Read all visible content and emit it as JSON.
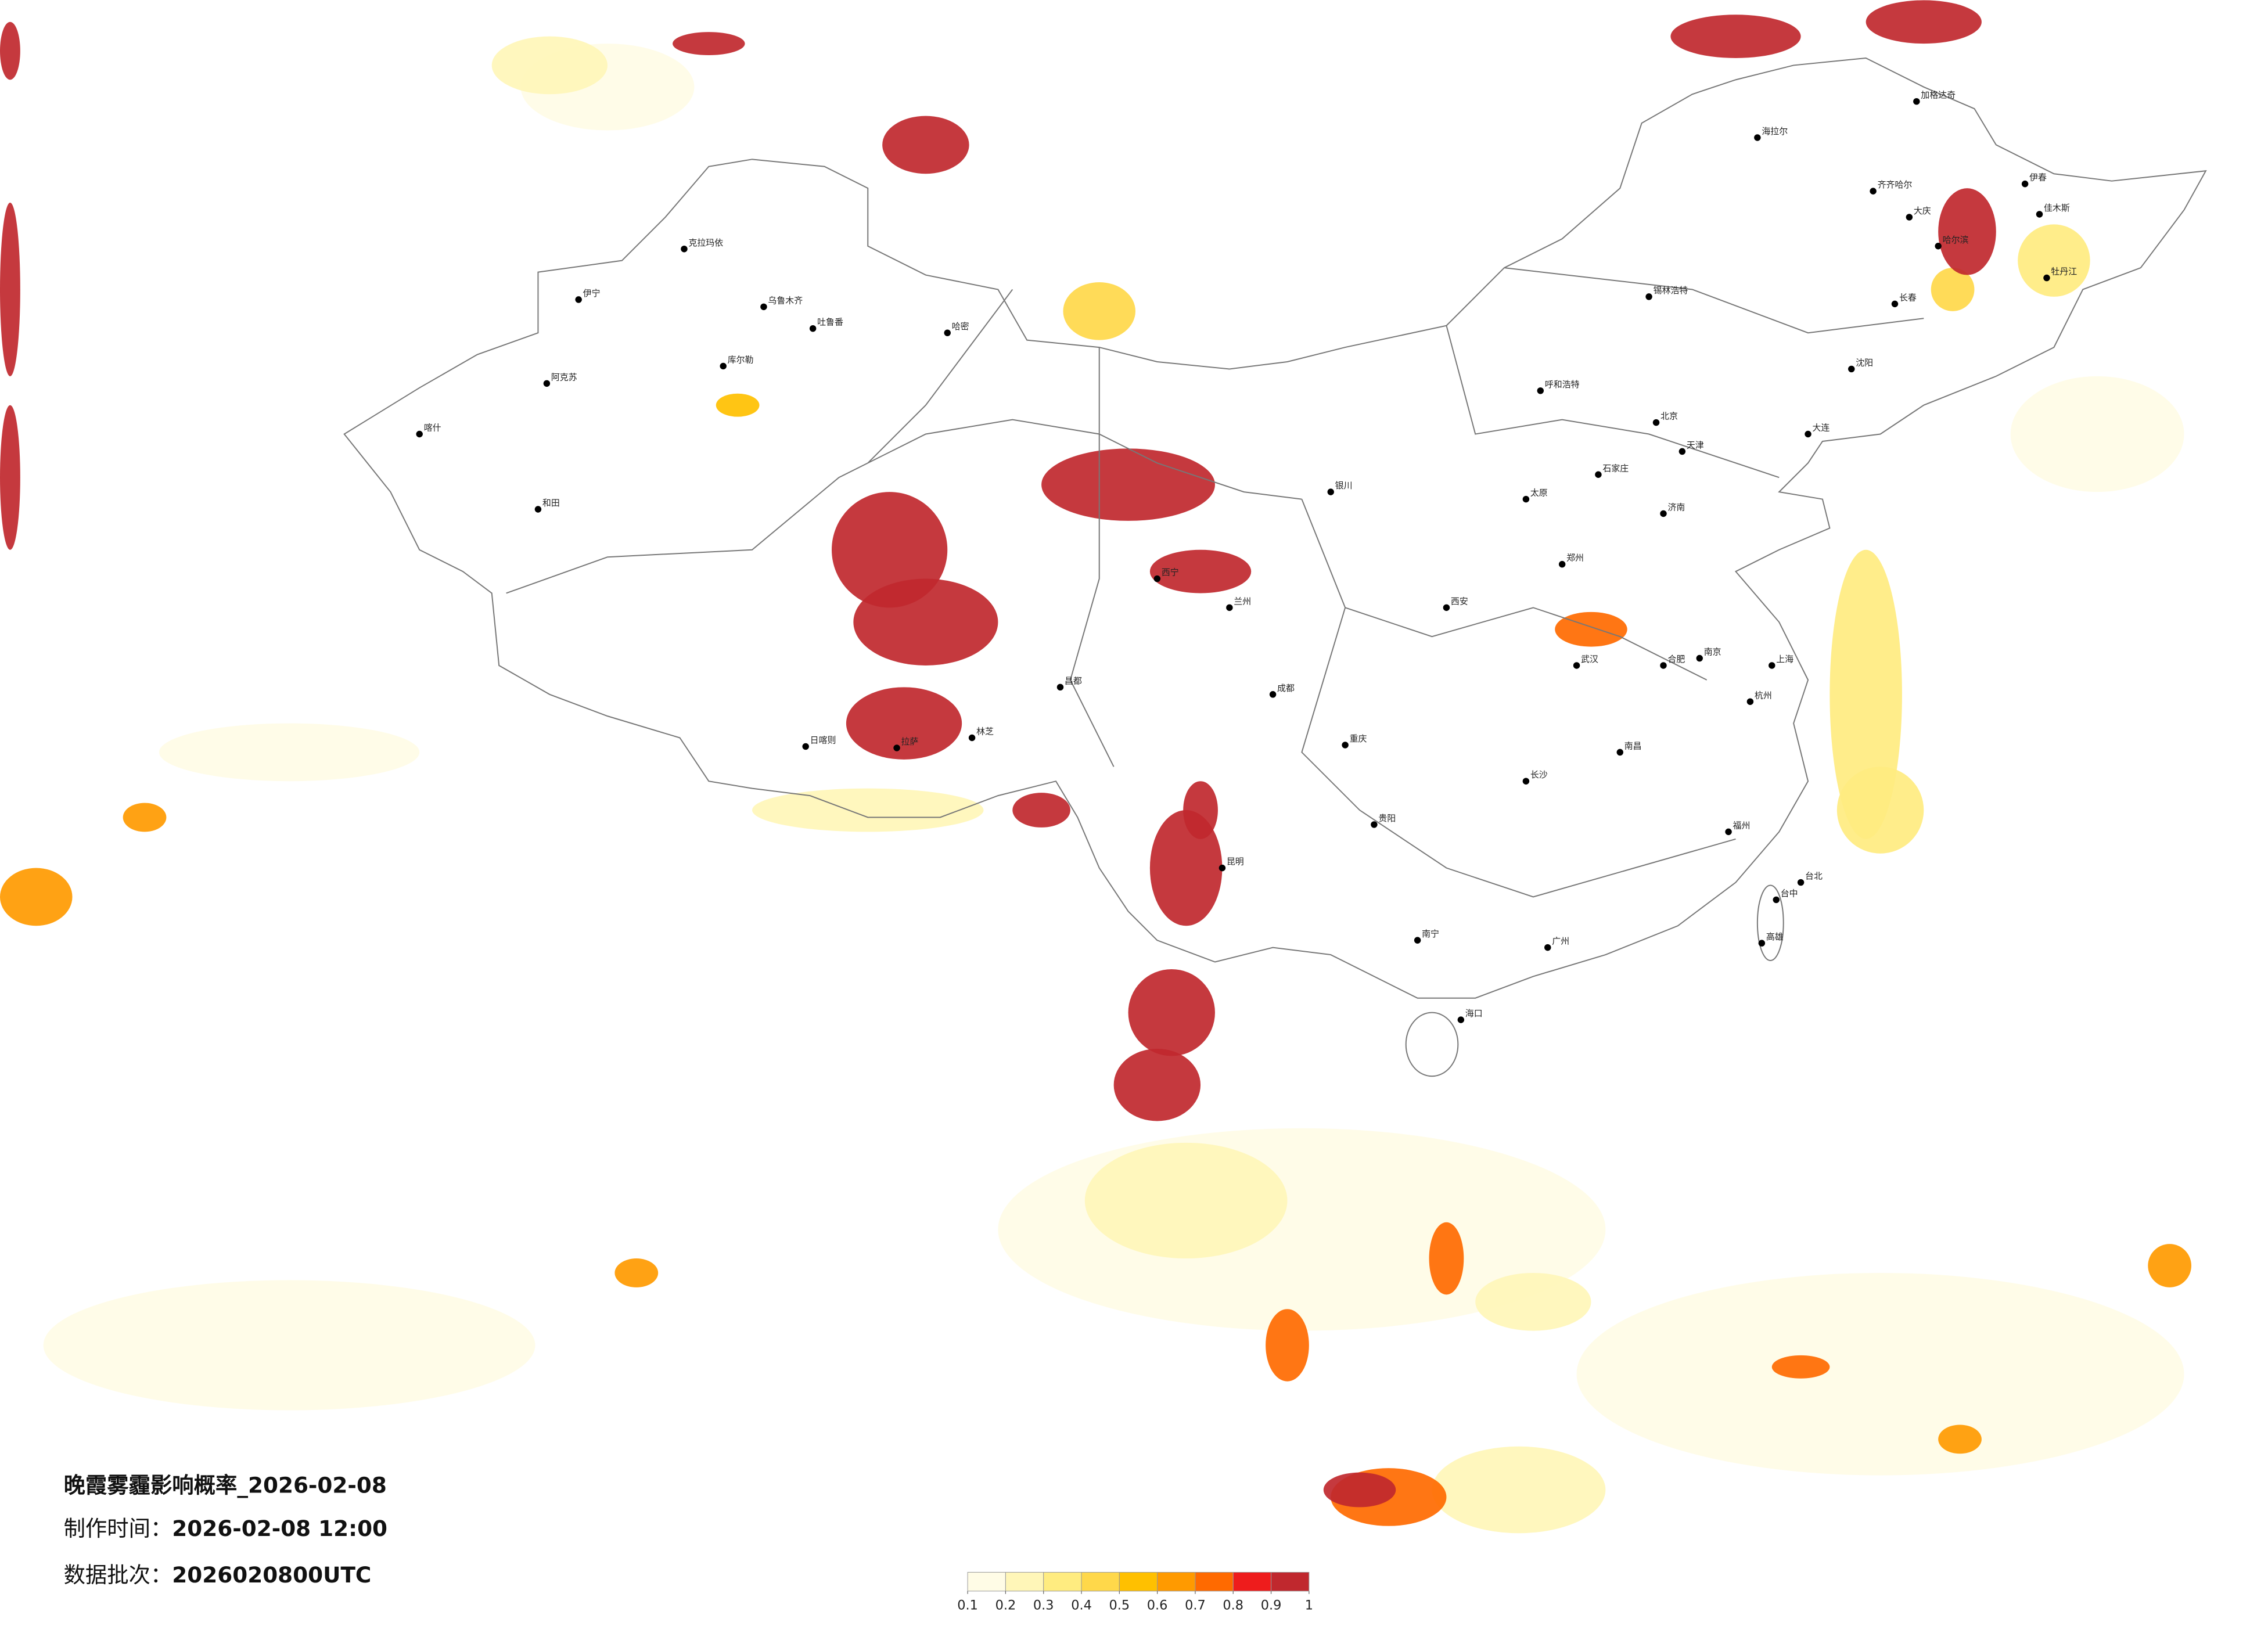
{
  "header": {
    "title": "晚霞雾霾影响概率_2026-02-08",
    "made_label": "制作时间：",
    "made_value": "2026-02-08 12:00",
    "batch_label": "数据批次：",
    "batch_value": "2026020800UTC"
  },
  "legend": {
    "ticks": [
      0.1,
      0.2,
      0.3,
      0.4,
      0.5,
      0.6,
      0.7,
      0.8,
      0.9,
      1
    ],
    "colors": [
      "#fffce6",
      "#fff6b8",
      "#ffec80",
      "#ffd84a",
      "#ffc000",
      "#ff9a00",
      "#ff6a00",
      "#ee1c1c",
      "#c0282e"
    ]
  },
  "cities": [
    "克拉玛依",
    "伊宁",
    "乌鲁木齐",
    "吐鲁番",
    "哈密",
    "库尔勒",
    "阿克苏",
    "喀什",
    "和田",
    "日喀则",
    "拉萨",
    "林芝",
    "昌都",
    "西宁",
    "兰州",
    "银川",
    "呼和浩特",
    "西安",
    "成都",
    "重庆",
    "贵阳",
    "昆明",
    "南宁",
    "海口",
    "广州",
    "长沙",
    "武汉",
    "南昌",
    "福州",
    "台北",
    "台中",
    "高雄",
    "杭州",
    "上海",
    "南京",
    "合肥",
    "郑州",
    "济南",
    "太原",
    "石家庄",
    "北京",
    "天津",
    "大连",
    "沈阳",
    "长春",
    "哈尔滨",
    "大庆",
    "齐齐哈尔",
    "海拉尔",
    "加格达奇",
    "伊春",
    "佳木斯",
    "牡丹江",
    "锡林浩特"
  ]
}
